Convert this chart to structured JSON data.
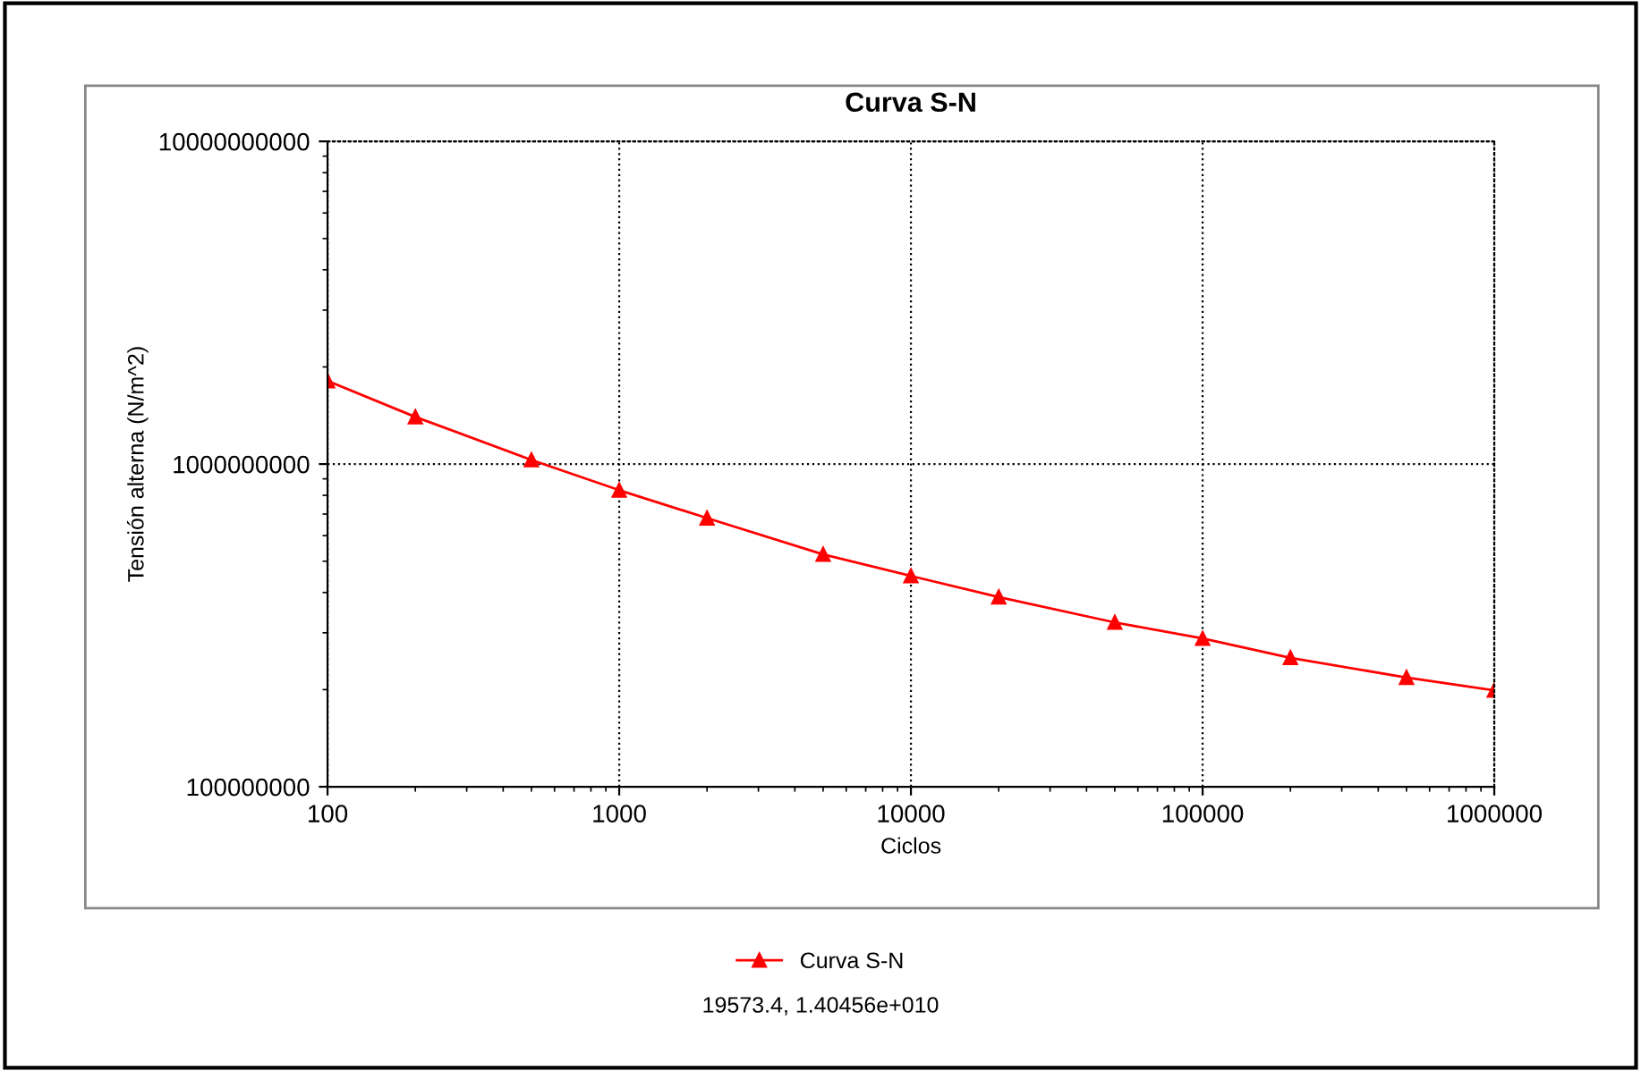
{
  "chart_data": {
    "type": "line",
    "title": "Curva S-N",
    "xlabel": "Ciclos",
    "ylabel": "Tensión alterna (N/m^2)",
    "x": [
      100,
      200,
      500,
      1000,
      2000,
      5000,
      10000,
      20000,
      50000,
      100000,
      200000,
      500000,
      1000000
    ],
    "series": [
      {
        "name": "Curva S-N",
        "color": "#ff0000",
        "values": [
          1810000000,
          1400000000,
          1030000000,
          830000000,
          680000000,
          525000000,
          450000000,
          387000000,
          323000000,
          288000000,
          251000000,
          218000000,
          199000000
        ]
      }
    ],
    "log": "xy",
    "xlim": [
      100,
      1000000
    ],
    "ylim": [
      100000000,
      10000000000
    ],
    "xticks": [
      100,
      1000,
      10000,
      100000,
      1000000
    ],
    "yticks": [
      100000000,
      1000000000,
      10000000000
    ],
    "grid": true,
    "legend": "bottom",
    "marker": "triangle",
    "line_style": "solid",
    "annotations": [
      "19573.4, 1.40456e+010"
    ]
  }
}
